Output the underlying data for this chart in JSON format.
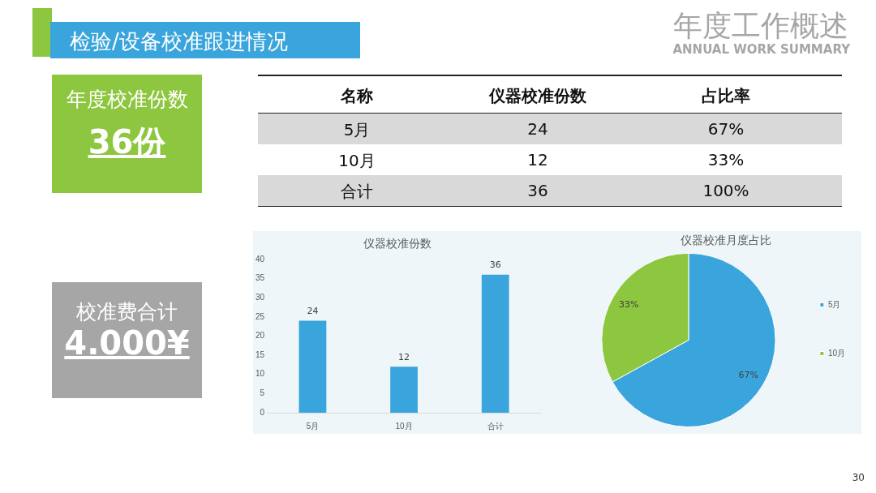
{
  "chart_data": [
    {
      "type": "other",
      "title": "检验/设备校准跟进情况",
      "annotations": [
        "年度工作概述",
        "ANNUAL WORK SUMMARY",
        "年度校准份数",
        "36份",
        "校准费合计",
        "4.000¥",
        "30"
      ]
    },
    {
      "type": "other",
      "annotations": [
        "名称",
        "仪器校准份数",
        "占比率",
        "5月",
        "24",
        "67%",
        "10月",
        "12",
        "33%",
        "合计",
        "36",
        "100%"
      ]
    },
    {
      "type": "bar",
      "title": "仪器校准份数",
      "categories": [
        "5月",
        "10月",
        "合计"
      ],
      "values": [
        24,
        12,
        36
      ],
      "color": "#3aa5dc",
      "ylim": [
        0,
        40
      ],
      "yticks": [
        0,
        5,
        10,
        15,
        20,
        25,
        30,
        35,
        40
      ],
      "data_labels": true
    },
    {
      "type": "pie",
      "title": "仪器校准月度占比",
      "categories": [
        "5月",
        "10月"
      ],
      "values": [
        67,
        33
      ],
      "colors": [
        "#3aa5dc",
        "#8dc63f"
      ],
      "value_labels": [
        "67%",
        "33%"
      ],
      "legend": "right"
    }
  ]
}
